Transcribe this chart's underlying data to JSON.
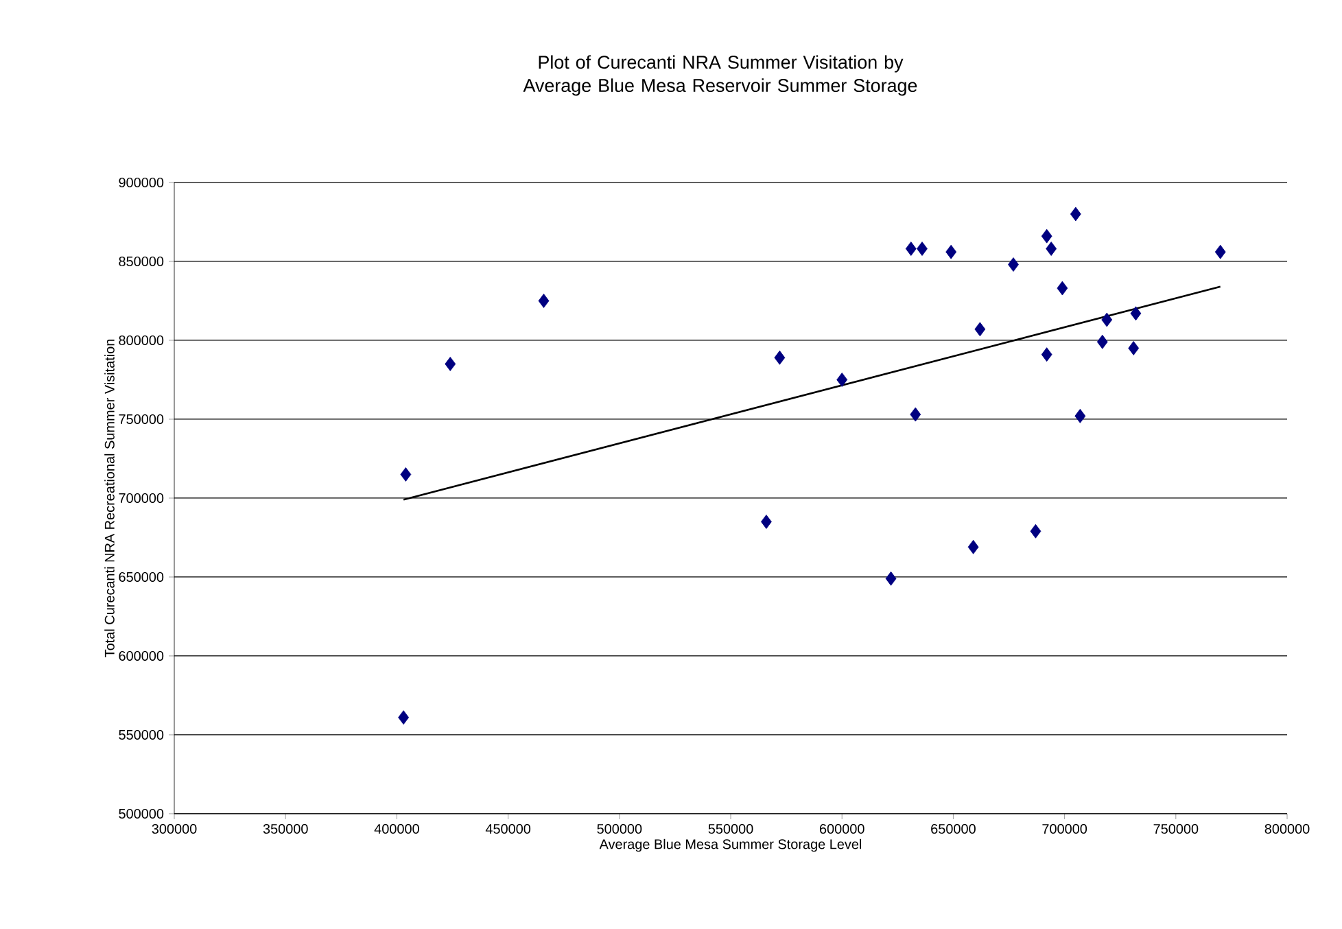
{
  "chart_data": {
    "type": "scatter",
    "title": "Plot of Curecanti NRA Summer Visitation by Average Blue Mesa Reservoir Summer Storage",
    "xlabel": "Average Blue Mesa Summer Storage Level",
    "ylabel": "Total Curecanti NRA Recreational Summer Visitation",
    "xlim": [
      300000,
      800000
    ],
    "xticks": [
      300000,
      350000,
      400000,
      450000,
      500000,
      550000,
      600000,
      650000,
      700000,
      750000,
      800000
    ],
    "ylim": [
      500000,
      900000
    ],
    "yticks": [
      500000,
      550000,
      600000,
      650000,
      700000,
      750000,
      800000,
      850000,
      900000
    ],
    "grid": "y",
    "marker": "diamond",
    "series": [
      {
        "color": "#000080",
        "x": [
          404000,
          403000,
          424000,
          466000,
          566000,
          572000,
          600000,
          622000,
          631000,
          636000,
          649000,
          677000,
          692000,
          694000,
          705000,
          770000,
          699000,
          662000,
          719000,
          732000,
          717000,
          731000,
          692000,
          633000,
          707000,
          687000,
          659000
        ],
        "values": [
          715000,
          561000,
          785000,
          825000,
          685000,
          789000,
          775000,
          649000,
          858000,
          858000,
          856000,
          848000,
          866000,
          858000,
          880000,
          856000,
          833000,
          807000,
          813000,
          817000,
          799000,
          795000,
          791000,
          753000,
          752000,
          679000,
          669000
        ]
      },
      {
        "type": "line",
        "color": "#000000",
        "marker": "none",
        "line_style": "solid",
        "x": [
          403000,
          770000
        ],
        "values": [
          699000,
          834000
        ]
      }
    ]
  }
}
